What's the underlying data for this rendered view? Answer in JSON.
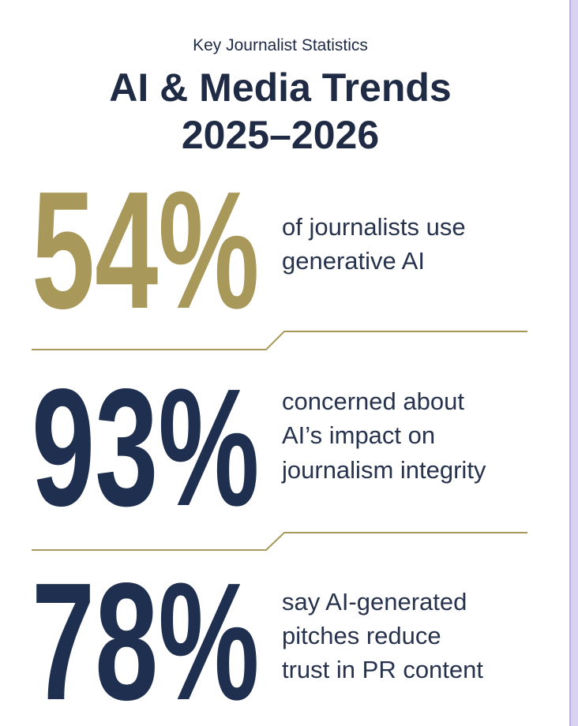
{
  "header": {
    "subtitle": "Key Journalist Statistics",
    "title": [
      "AI & Media Trends",
      "2025–2026"
    ]
  },
  "stats": [
    {
      "figure": "54%",
      "color": "#a8995a",
      "description": [
        "of journalists use",
        "generative AI"
      ]
    },
    {
      "figure": "93%",
      "color": "#1f2f4f",
      "description": [
        "concerned about",
        "AI’s impact on",
        "journalism integrity"
      ]
    },
    {
      "figure": "78%",
      "color": "#1f2f4f",
      "description": [
        "say AI-generated",
        "pitches reduce",
        "trust in PR content"
      ]
    }
  ]
}
